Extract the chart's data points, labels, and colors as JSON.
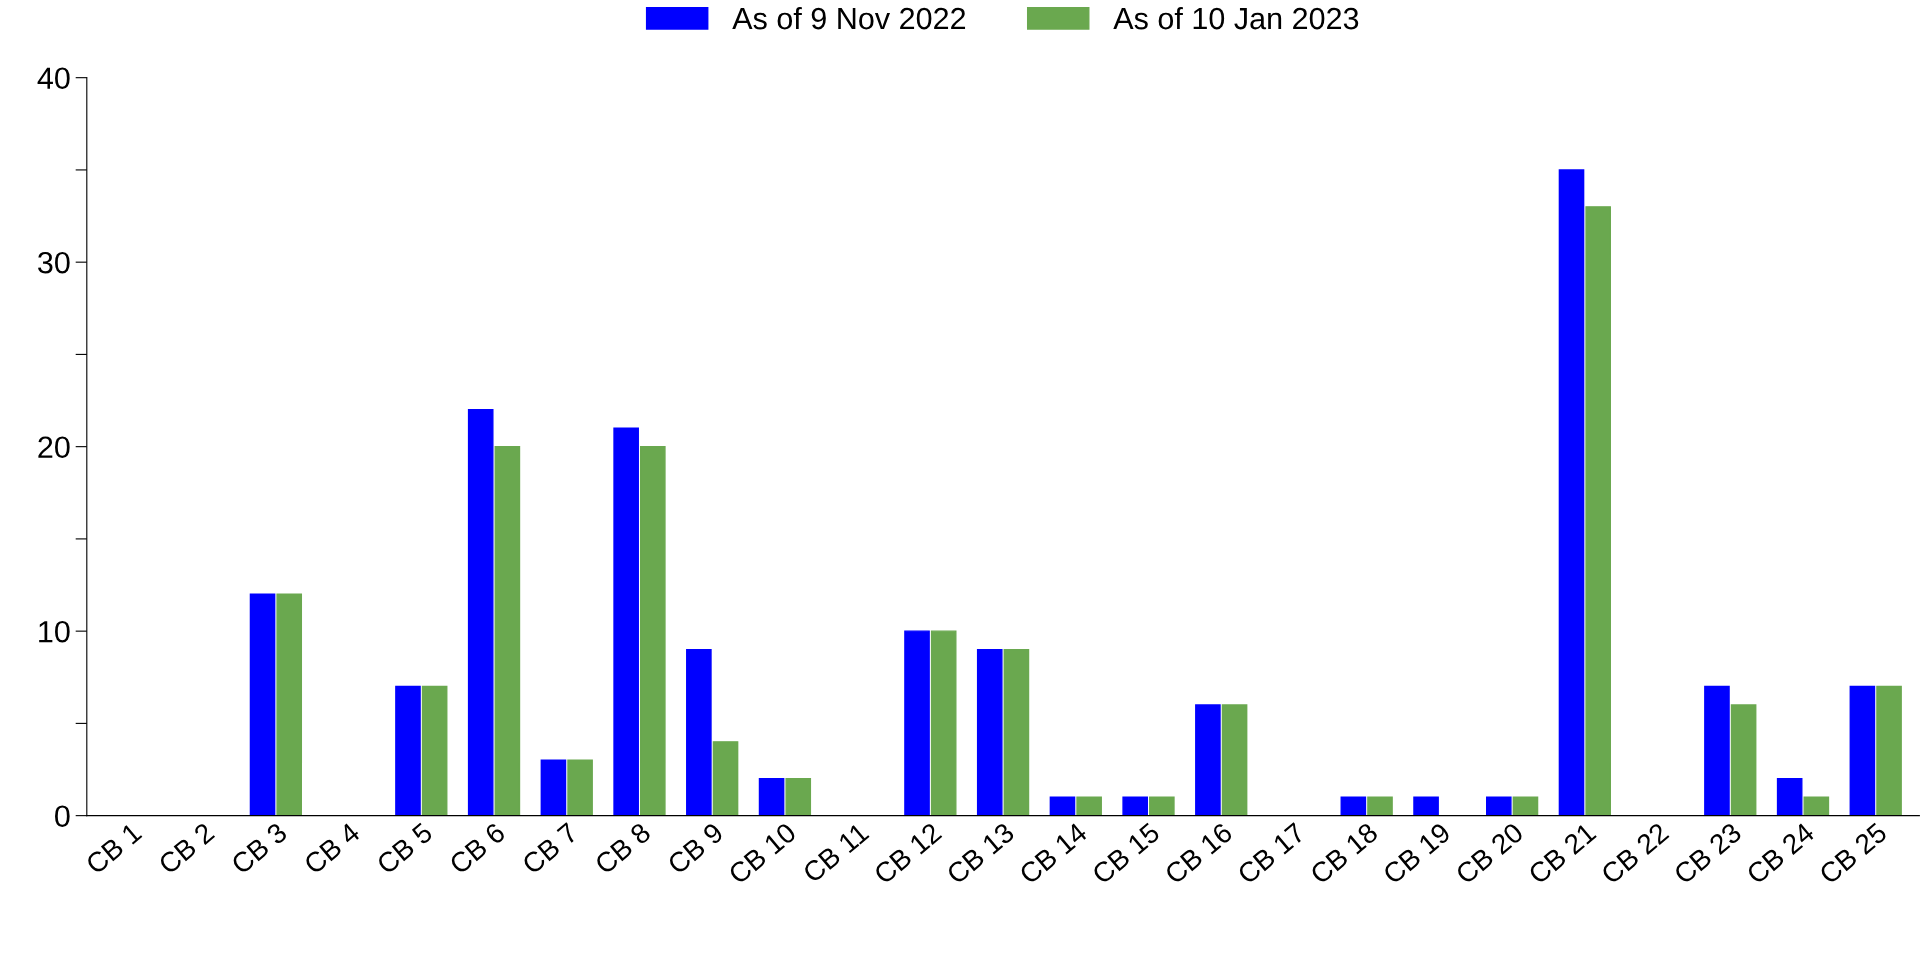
{
  "chart_data": {
    "type": "bar",
    "categories": [
      "CB 1",
      "CB 2",
      "CB 3",
      "CB 4",
      "CB 5",
      "CB 6",
      "CB 7",
      "CB 8",
      "CB 9",
      "CB 10",
      "CB 11",
      "CB 12",
      "CB 13",
      "CB 14",
      "CB 15",
      "CB 16",
      "CB 17",
      "CB 18",
      "CB 19",
      "CB 20",
      "CB 21",
      "CB 22",
      "CB 23",
      "CB 24",
      "CB 25"
    ],
    "series": [
      {
        "name": "As of 9 Nov 2022",
        "color": "#0000ff",
        "values": [
          0,
          0,
          12,
          0,
          7,
          22,
          3,
          21,
          9,
          2,
          0,
          10,
          9,
          1,
          1,
          6,
          0,
          1,
          1,
          1,
          35,
          0,
          7,
          2,
          7
        ]
      },
      {
        "name": "As of 10 Jan 2023",
        "color": "#6aa84f",
        "values": [
          0,
          0,
          12,
          0,
          7,
          20,
          3,
          20,
          4,
          2,
          0,
          10,
          9,
          1,
          1,
          6,
          0,
          1,
          0,
          1,
          33,
          0,
          6,
          1,
          7
        ]
      }
    ],
    "ylim": [
      0,
      40
    ],
    "yticks": [
      0,
      {
        "value": 5,
        "label": null
      },
      10,
      {
        "value": 15,
        "label": null
      },
      20,
      {
        "value": 25,
        "label": null
      },
      30,
      {
        "value": 35,
        "label": null
      },
      40
    ],
    "grid": false,
    "legend": "top"
  }
}
